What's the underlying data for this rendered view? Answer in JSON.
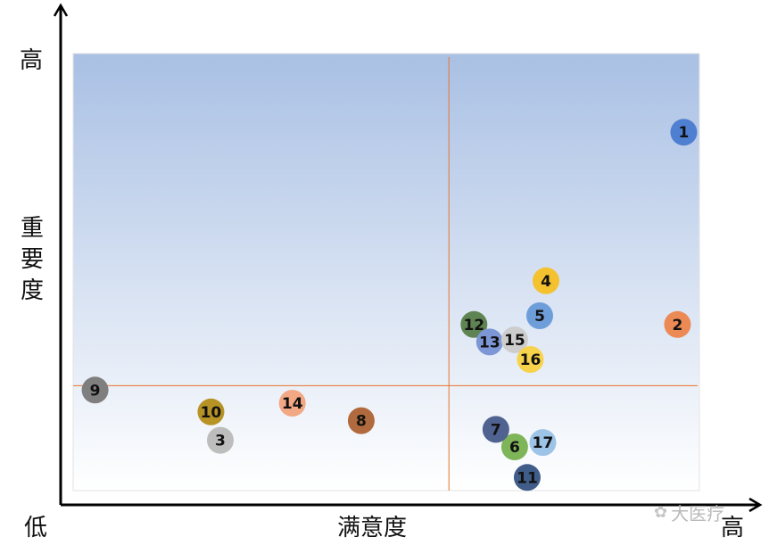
{
  "chart_data": {
    "type": "scatter",
    "xlabel": "满意度",
    "ylabel": "重要度",
    "x_low_label": "低",
    "x_high_label": "高",
    "y_high_label": "高",
    "xlim": [
      0,
      100
    ],
    "ylim": [
      0,
      100
    ],
    "divider_x": 60,
    "divider_y": 24,
    "grid": false,
    "legend": "none",
    "colors": {
      "plot_top": "#a9c0e4",
      "plot_bottom": "#ffffff",
      "divider": "#e8732c",
      "axis": "#000000"
    },
    "points": [
      {
        "label": "1",
        "x": 97.5,
        "y": 82,
        "color": "#4f7fd0"
      },
      {
        "label": "2",
        "x": 96.5,
        "y": 38,
        "color": "#ec8a55"
      },
      {
        "label": "3",
        "x": 23.5,
        "y": 11.5,
        "color": "#bdbdbd"
      },
      {
        "label": "4",
        "x": 75.5,
        "y": 48,
        "color": "#f4c22e"
      },
      {
        "label": "5",
        "x": 74.5,
        "y": 40,
        "color": "#6e9ed9"
      },
      {
        "label": "6",
        "x": 70.5,
        "y": 10,
        "color": "#7fb559"
      },
      {
        "label": "7",
        "x": 67.5,
        "y": 14,
        "color": "#4f6290"
      },
      {
        "label": "8",
        "x": 46,
        "y": 16,
        "color": "#b06a3e"
      },
      {
        "label": "9",
        "x": 3.5,
        "y": 23,
        "color": "#7f7f7f"
      },
      {
        "label": "10",
        "x": 22,
        "y": 18,
        "color": "#b79326"
      },
      {
        "label": "11",
        "x": 72.5,
        "y": 3,
        "color": "#3f5d88"
      },
      {
        "label": "12",
        "x": 64,
        "y": 38,
        "color": "#5f8453"
      },
      {
        "label": "13",
        "x": 66.5,
        "y": 34,
        "color": "#7d97d6"
      },
      {
        "label": "14",
        "x": 35,
        "y": 20,
        "color": "#f2a885"
      },
      {
        "label": "15",
        "x": 70.5,
        "y": 34.5,
        "color": "#cdcdcd"
      },
      {
        "label": "16",
        "x": 73,
        "y": 30,
        "color": "#f7d24b"
      },
      {
        "label": "17",
        "x": 75,
        "y": 11,
        "color": "#9dc3e6"
      }
    ]
  },
  "watermark": {
    "icon": "wechat-icon",
    "text": "大医疗"
  }
}
